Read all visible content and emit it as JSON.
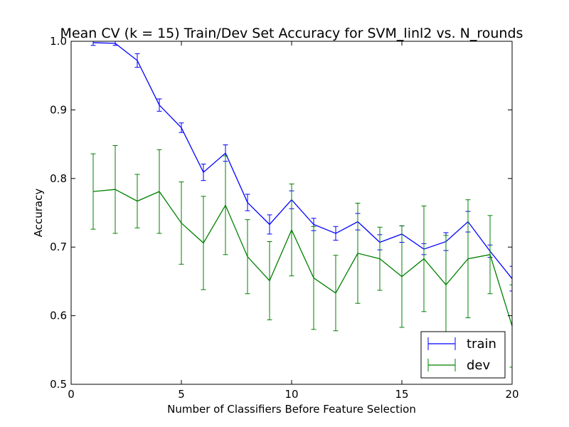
{
  "chart_data": {
    "type": "line",
    "title": "Mean CV (k = 15) Train/Dev Set Accuracy for SVM_linl2 vs. N_rounds",
    "xlabel": "Number of Classifiers Before Feature Selection",
    "ylabel": "Accuracy",
    "xlim": [
      0,
      20
    ],
    "ylim": [
      0.5,
      1.0
    ],
    "x_ticks": [
      0,
      5,
      10,
      15,
      20
    ],
    "x_tick_labels": [
      "0",
      "5",
      "10",
      "15",
      "20"
    ],
    "y_ticks": [
      0.5,
      0.6,
      0.7,
      0.8,
      0.9,
      1.0
    ],
    "y_tick_labels": [
      "0.5",
      "0.6",
      "0.7",
      "0.8",
      "0.9",
      "1.0"
    ],
    "grid": false,
    "legend_position": "bottom-right",
    "x": [
      1,
      2,
      3,
      4,
      5,
      6,
      7,
      8,
      9,
      10,
      11,
      12,
      13,
      14,
      15,
      16,
      17,
      18,
      19,
      20
    ],
    "series": [
      {
        "name": "train",
        "color": "#0000ff",
        "values": [
          0.998,
          0.997,
          0.972,
          0.907,
          0.874,
          0.809,
          0.837,
          0.765,
          0.733,
          0.769,
          0.733,
          0.72,
          0.737,
          0.707,
          0.719,
          0.697,
          0.708,
          0.737,
          0.694,
          0.654
        ],
        "errors": [
          0.004,
          0.003,
          0.01,
          0.009,
          0.007,
          0.012,
          0.012,
          0.012,
          0.014,
          0.013,
          0.009,
          0.01,
          0.012,
          0.011,
          0.012,
          0.008,
          0.013,
          0.015,
          0.009,
          0.018
        ]
      },
      {
        "name": "dev",
        "color": "#008000",
        "values": [
          0.781,
          0.784,
          0.767,
          0.781,
          0.735,
          0.706,
          0.761,
          0.686,
          0.651,
          0.725,
          0.655,
          0.633,
          0.691,
          0.683,
          0.657,
          0.683,
          0.645,
          0.683,
          0.689,
          0.585
        ],
        "errors": [
          0.055,
          0.064,
          0.039,
          0.061,
          0.06,
          0.068,
          0.072,
          0.054,
          0.057,
          0.067,
          0.075,
          0.055,
          0.073,
          0.046,
          0.074,
          0.077,
          0.072,
          0.086,
          0.057,
          0.06
        ]
      }
    ]
  }
}
